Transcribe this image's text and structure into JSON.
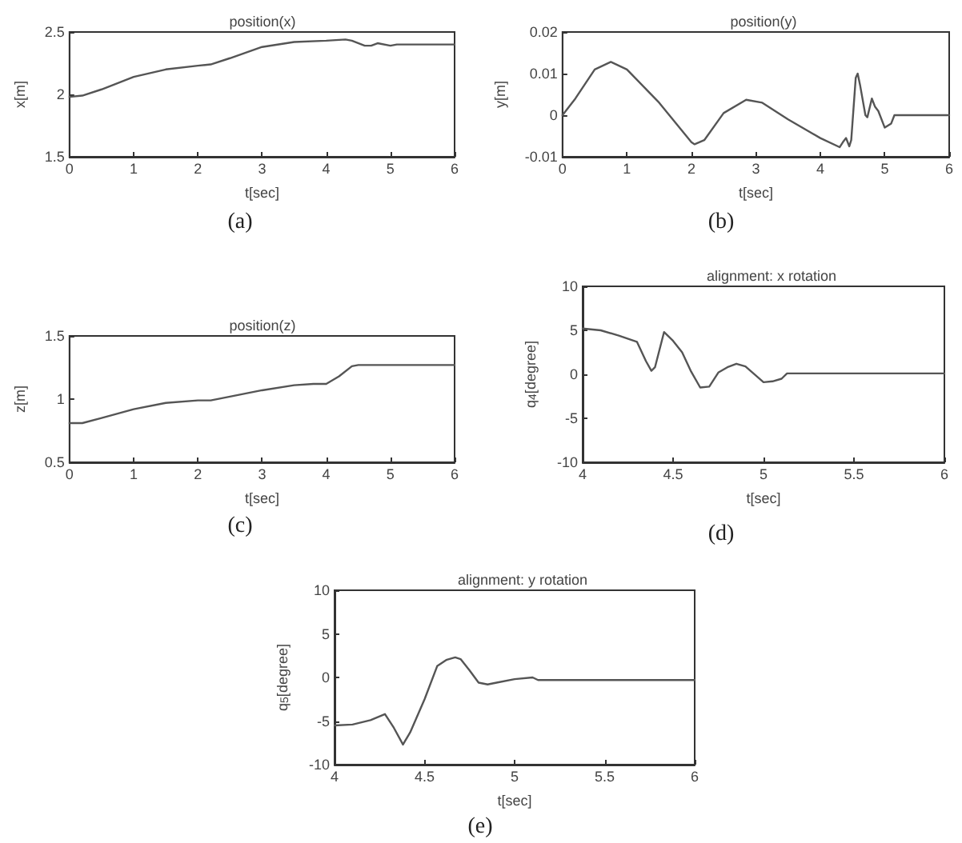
{
  "chart_data": [
    {
      "type": "line",
      "title": "position(x)",
      "xlabel": "t[sec]",
      "ylabel": "x[m]",
      "annotations": [
        "(a)"
      ],
      "xlim": [
        0,
        6
      ],
      "xticks": [
        0,
        1,
        2,
        3,
        4,
        5,
        6
      ],
      "ylim": [
        1.5,
        2.5
      ],
      "yticks": [
        1.5,
        2,
        2.5
      ],
      "grid": false,
      "marker": "none",
      "line_style": "solid",
      "series": [
        {
          "color": "#555555",
          "x": [
            0,
            0.2,
            0.5,
            1,
            1.5,
            2,
            2.2,
            2.5,
            3,
            3.5,
            4,
            4.3,
            4.4,
            4.6,
            4.7,
            4.8,
            5,
            5.1,
            6
          ],
          "values": [
            1.98,
            1.99,
            2.04,
            2.14,
            2.2,
            2.23,
            2.24,
            2.29,
            2.38,
            2.42,
            2.43,
            2.44,
            2.43,
            2.39,
            2.39,
            2.41,
            2.39,
            2.4,
            2.4
          ]
        }
      ]
    },
    {
      "type": "line",
      "title": "position(y)",
      "xlabel": "t[sec]",
      "ylabel": "y[m]",
      "annotations": [
        "(b)"
      ],
      "xlim": [
        0,
        6
      ],
      "xticks": [
        0,
        1,
        2,
        3,
        4,
        5,
        6
      ],
      "ylim": [
        -0.01,
        0.02
      ],
      "yticks": [
        -0.01,
        0,
        0.01,
        0.02
      ],
      "grid": false,
      "marker": "none",
      "line_style": "solid",
      "series": [
        {
          "color": "#555555",
          "x": [
            0,
            0.2,
            0.5,
            0.75,
            1,
            1.5,
            2,
            2.05,
            2.2,
            2.5,
            2.85,
            3.1,
            3.5,
            4,
            4.3,
            4.35,
            4.4,
            4.45,
            4.48,
            4.55,
            4.58,
            4.62,
            4.7,
            4.73,
            4.8,
            4.85,
            4.9,
            5,
            5.1,
            5.15,
            6
          ],
          "values": [
            0,
            0.004,
            0.011,
            0.0128,
            0.011,
            0.003,
            -0.0065,
            -0.007,
            -0.006,
            0.0005,
            0.0037,
            0.003,
            -0.001,
            -0.0055,
            -0.0077,
            -0.0065,
            -0.0055,
            -0.0075,
            -0.006,
            0.009,
            0.01,
            0.007,
            0,
            -0.0005,
            0.004,
            0.002,
            0.001,
            -0.003,
            -0.002,
            0,
            0
          ]
        }
      ]
    },
    {
      "type": "line",
      "title": "position(z)",
      "xlabel": "t[sec]",
      "ylabel": "z[m]",
      "annotations": [
        "(c)"
      ],
      "xlim": [
        0,
        6
      ],
      "xticks": [
        0,
        1,
        2,
        3,
        4,
        5,
        6
      ],
      "ylim": [
        0.5,
        1.5
      ],
      "yticks": [
        0.5,
        1,
        1.5
      ],
      "grid": false,
      "marker": "none",
      "line_style": "solid",
      "series": [
        {
          "color": "#555555",
          "x": [
            0,
            0.2,
            0.5,
            1,
            1.5,
            2,
            2.2,
            2.5,
            3,
            3.5,
            3.8,
            4,
            4.2,
            4.4,
            4.5,
            6
          ],
          "values": [
            0.81,
            0.81,
            0.85,
            0.92,
            0.97,
            0.99,
            0.99,
            1.02,
            1.07,
            1.11,
            1.12,
            1.12,
            1.18,
            1.26,
            1.27,
            1.27
          ]
        }
      ]
    },
    {
      "type": "line",
      "title": "alignment: x rotation",
      "xlabel": "t[sec]",
      "ylabel": "q$_{4}$[degree]",
      "annotations": [
        "(d)"
      ],
      "xlim": [
        4,
        6
      ],
      "xticks": [
        4,
        4.5,
        5,
        5.5,
        6
      ],
      "ylim": [
        -10,
        10
      ],
      "yticks": [
        -10,
        -5,
        0,
        5,
        10
      ],
      "grid": false,
      "marker": "none",
      "line_style": "solid",
      "series": [
        {
          "color": "#555555",
          "x": [
            4,
            4.1,
            4.2,
            4.3,
            4.35,
            4.38,
            4.4,
            4.45,
            4.5,
            4.55,
            4.6,
            4.65,
            4.7,
            4.75,
            4.8,
            4.85,
            4.9,
            5,
            5.05,
            5.1,
            5.13,
            6
          ],
          "values": [
            5.2,
            5,
            4.4,
            3.7,
            1.5,
            0.4,
            0.8,
            4.8,
            3.8,
            2.5,
            0.3,
            -1.5,
            -1.4,
            0.2,
            0.8,
            1.2,
            0.9,
            -0.9,
            -0.8,
            -0.5,
            0.1,
            0.1
          ]
        }
      ]
    },
    {
      "type": "line",
      "title": "alignment: y rotation",
      "xlabel": "t[sec]",
      "ylabel": "q$_{5}$[degree]",
      "annotations": [
        "(e)"
      ],
      "xlim": [
        4,
        6
      ],
      "xticks": [
        4,
        4.5,
        5,
        5.5,
        6
      ],
      "ylim": [
        -10,
        10
      ],
      "yticks": [
        -10,
        -5,
        0,
        5,
        10
      ],
      "grid": false,
      "marker": "none",
      "line_style": "solid",
      "series": [
        {
          "color": "#555555",
          "x": [
            4,
            4.1,
            4.2,
            4.28,
            4.33,
            4.38,
            4.42,
            4.5,
            4.57,
            4.62,
            4.67,
            4.7,
            4.75,
            4.8,
            4.85,
            4.9,
            5,
            5.1,
            5.13,
            6
          ],
          "values": [
            -5.5,
            -5.4,
            -4.9,
            -4.2,
            -5.8,
            -7.7,
            -6.3,
            -2.5,
            1.3,
            2,
            2.3,
            2.1,
            0.8,
            -0.6,
            -0.8,
            -0.6,
            -0.2,
            0,
            -0.3,
            -0.3
          ]
        }
      ]
    }
  ]
}
